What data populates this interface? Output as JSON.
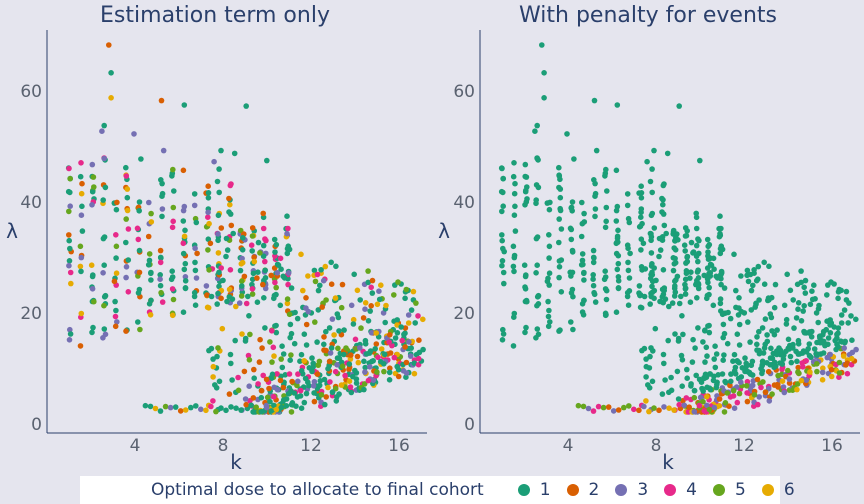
{
  "chart_data": [
    {
      "type": "scatter",
      "title": "Estimation term only",
      "xlabel": "k",
      "ylabel": "λ",
      "xlim": [
        0,
        16.6
      ],
      "ylim": [
        0,
        68
      ],
      "xticks": [
        "4",
        "8",
        "12",
        "16"
      ],
      "yticks": [
        "0",
        "20",
        "40",
        "60"
      ],
      "seed": 7,
      "mixed": true
    },
    {
      "type": "scatter",
      "title": "With penalty for events",
      "xlabel": "k",
      "ylabel": "λ",
      "xlim": [
        0,
        16.6
      ],
      "ylim": [
        0,
        68
      ],
      "xticks": [
        "4",
        "8",
        "12",
        "16"
      ],
      "yticks": [
        "0",
        "20",
        "40",
        "60"
      ],
      "seed": 7,
      "mixed": false
    }
  ],
  "legend": {
    "title": "Optimal dose to allocate to final cohort",
    "items": [
      {
        "label": "1",
        "color": "#1b9e77"
      },
      {
        "label": "2",
        "color": "#d95f02"
      },
      {
        "label": "3",
        "color": "#7570b3"
      },
      {
        "label": "4",
        "color": "#e7298a"
      },
      {
        "label": "5",
        "color": "#66a61e"
      },
      {
        "label": "6",
        "color": "#e6ab02"
      }
    ]
  }
}
